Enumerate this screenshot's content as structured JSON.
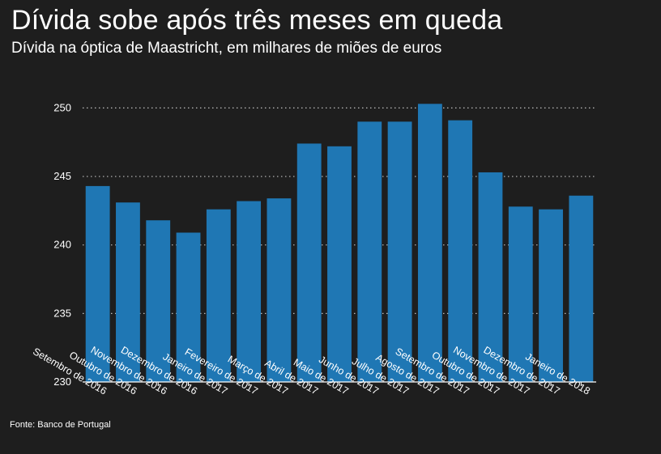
{
  "header": {
    "title": "Dívida sobe após três meses em queda",
    "subtitle": "Dívida na óptica de Maastricht, em milhares de miões de euros"
  },
  "footer": {
    "source": "Fonte: Banco de Portugal"
  },
  "colors": {
    "background": "#1e1e1e",
    "bar": "#1f77b4",
    "text": "#ffffff",
    "grid": "#bdbdbd"
  },
  "chart_data": {
    "type": "bar",
    "title": "Dívida sobe após três meses em queda",
    "subtitle": "Dívida na óptica de Maastricht, em milhares de miões de euros",
    "xlabel": "",
    "ylabel": "",
    "categories": [
      "Setembro de 2016",
      "Outubro de 2016",
      "Novembro de 2016",
      "Dezembro de 2016",
      "Janeiro de 2017",
      "Fevereiro de 2017",
      "Março de 2017",
      "Abril de 2017",
      "Maio de 2017",
      "Junho de 2017",
      "Julho de 2017",
      "Agosto de 2017",
      "Setembro de 2017",
      "Outubro de 2017",
      "Novembro de 2017",
      "Dezembro de 2017",
      "Janeiro de 2018"
    ],
    "values": [
      244.3,
      243.1,
      241.8,
      240.9,
      242.6,
      243.2,
      243.4,
      247.4,
      247.2,
      249.0,
      249.0,
      250.3,
      249.1,
      245.3,
      242.8,
      242.6,
      243.6
    ],
    "yticks": [
      230,
      235,
      240,
      245,
      250
    ],
    "ylim": [
      230,
      251.5
    ],
    "grid": "horizontal dotted",
    "legend": "none"
  }
}
